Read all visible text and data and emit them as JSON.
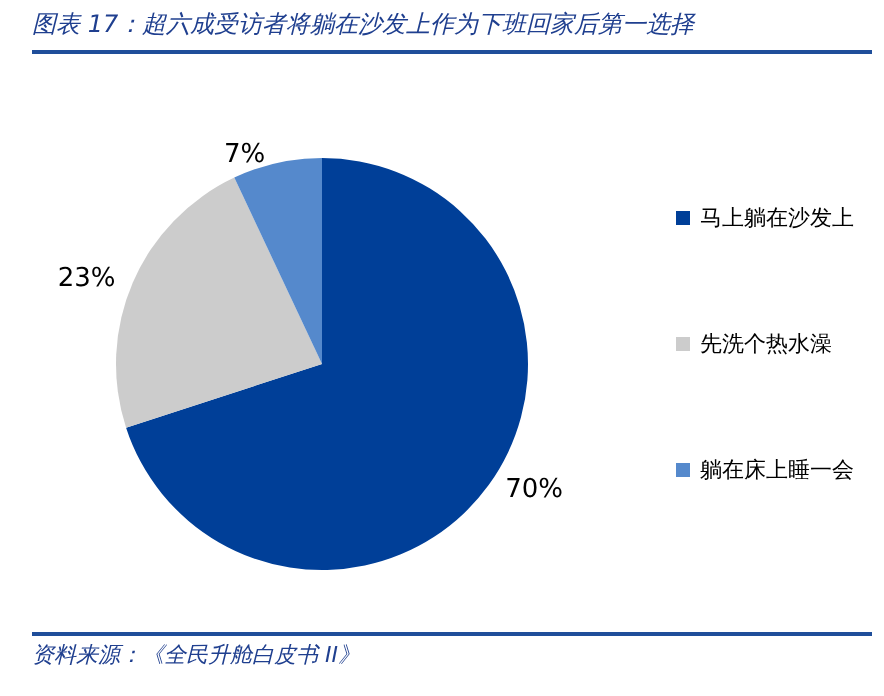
{
  "chart_data": {
    "type": "pie",
    "title": "图表 17：超六成受访者将躺在沙发上作为下班回家后第一选择",
    "categories": [
      "马上躺在沙发上",
      "先洗个热水澡",
      "躺在床上睡一会"
    ],
    "values": [
      70,
      23,
      7
    ],
    "colors": [
      "#003f98",
      "#cccccc",
      "#5589cc"
    ],
    "value_labels": [
      "70%",
      "23%",
      "7%"
    ],
    "legend": "right",
    "annotations": [
      "资料来源：《全民升舱白皮书 II》"
    ]
  }
}
